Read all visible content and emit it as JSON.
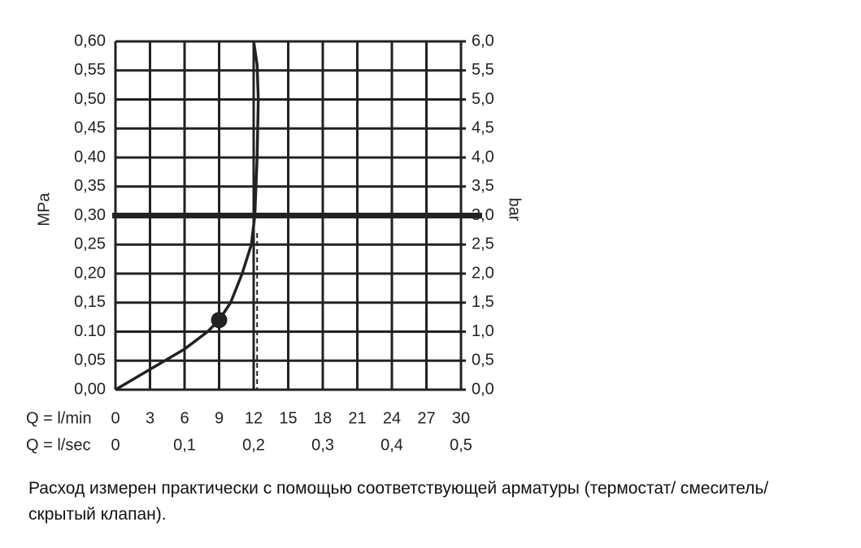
{
  "chart_data": {
    "type": "line",
    "y_label": "MPa",
    "y2_label": "bar",
    "x_label": "Q = l/min",
    "x2_label": "Q = l/sec",
    "note": "Расход измерен практически с помощью соответствующей арматуры (термостат/ смеситель/скрытый клапан).",
    "xlim": [
      0,
      30
    ],
    "xticks": [
      0,
      3,
      6,
      9,
      12,
      15,
      18,
      21,
      24,
      27,
      30
    ],
    "x2lim": [
      0,
      0.5
    ],
    "x2ticks": [
      0,
      {
        "value": 0.1,
        "label": "0,1"
      },
      {
        "value": 0.2,
        "label": "0,2"
      },
      {
        "value": 0.3,
        "label": "0,3"
      },
      {
        "value": 0.4,
        "label": "0,4"
      },
      {
        "value": 0.5,
        "label": "0,5"
      }
    ],
    "ylim": [
      0,
      0.6
    ],
    "yticks": [
      {
        "value": 0,
        "label": "0,00"
      },
      {
        "value": 0.05,
        "label": "0,05"
      },
      {
        "value": 0.1,
        "label": "0.10"
      },
      {
        "value": 0.15,
        "label": "0,15"
      },
      {
        "value": 0.2,
        "label": "0,20"
      },
      {
        "value": 0.25,
        "label": "0,25"
      },
      {
        "value": 0.3,
        "label": "0,30"
      },
      {
        "value": 0.35,
        "label": "0,35"
      },
      {
        "value": 0.4,
        "label": "0,40"
      },
      {
        "value": 0.45,
        "label": "0,45"
      },
      {
        "value": 0.5,
        "label": "0,50"
      },
      {
        "value": 0.55,
        "label": "0,55"
      },
      {
        "value": 0.6,
        "label": "0,60"
      }
    ],
    "y2lim": [
      0,
      6
    ],
    "y2ticks": [
      {
        "value": 0,
        "label": "0,0"
      },
      {
        "value": 0.5,
        "label": "0,5"
      },
      {
        "value": 1,
        "label": "1,0"
      },
      {
        "value": 1.5,
        "label": "1,5"
      },
      {
        "value": 2,
        "label": "2,0"
      },
      {
        "value": 2.5,
        "label": "2,5"
      },
      {
        "value": 3,
        "label": "3,0"
      },
      {
        "value": 3.5,
        "label": "3,5"
      },
      {
        "value": 4,
        "label": "4,0"
      },
      {
        "value": 4.5,
        "label": "4,5"
      },
      {
        "value": 5,
        "label": "5,0"
      },
      {
        "value": 5.5,
        "label": "5,5"
      },
      {
        "value": 6,
        "label": "6,0"
      }
    ],
    "grid": true,
    "highlight_y": 0.3,
    "color": "#222222",
    "x": [
      0,
      3,
      6,
      8,
      9,
      10,
      11,
      11.8,
      12.1,
      12.3,
      12.4,
      12.3,
      12
    ],
    "values": [
      0,
      0.035,
      0.07,
      0.1,
      0.12,
      0.15,
      0.2,
      0.25,
      0.3,
      0.4,
      0.5,
      0.56,
      0.6
    ],
    "operating_point": {
      "x": 9,
      "y": 0.12
    },
    "reference_line": {
      "x": 12.3,
      "y": 0.27
    }
  }
}
